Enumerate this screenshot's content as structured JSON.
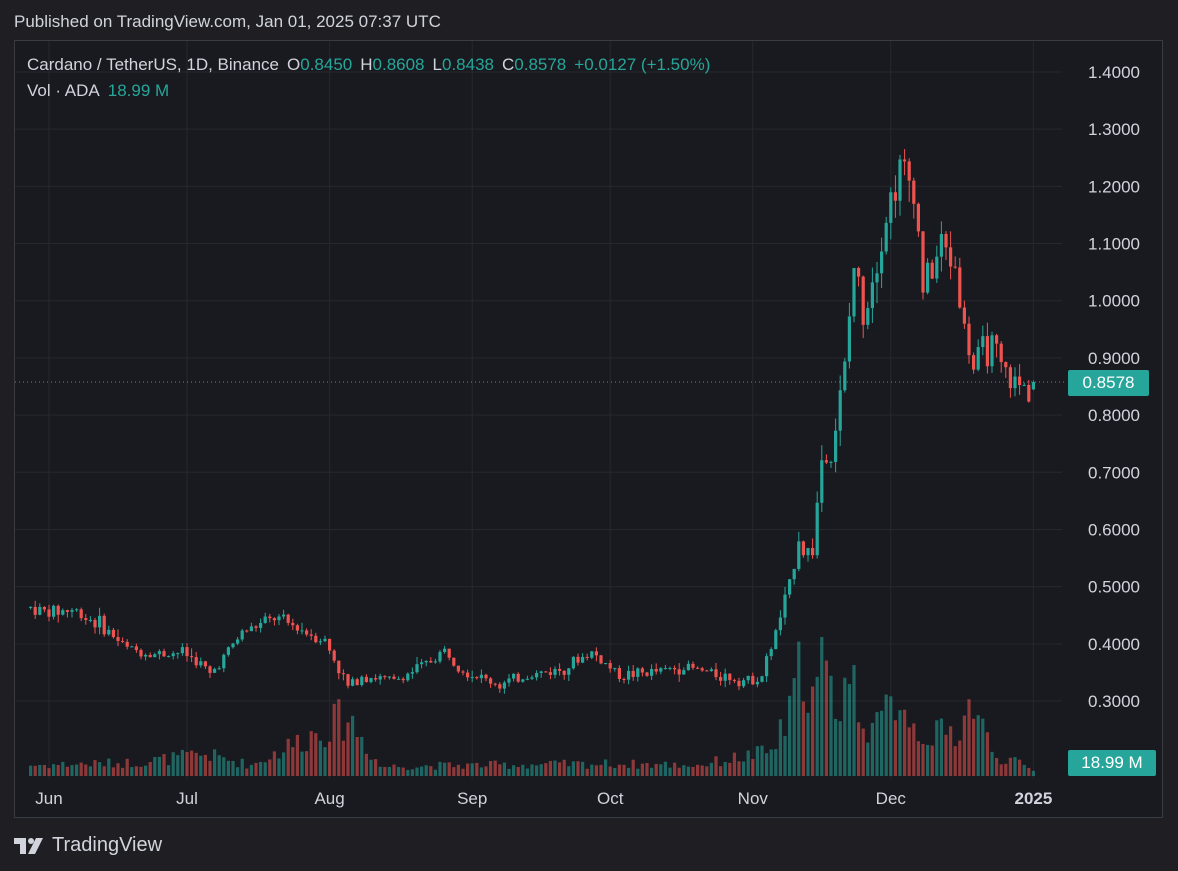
{
  "header": {
    "published": "Published on TradingView.com, Jan 01, 2025 07:37 UTC"
  },
  "legend": {
    "symbol": "Cardano / TetherUS, 1D, Binance",
    "o_label": "O",
    "o_value": "0.8450",
    "h_label": "H",
    "h_value": "0.8608",
    "l_label": "L",
    "l_value": "0.8438",
    "c_label": "C",
    "c_value": "0.8578",
    "change": "+0.0127 (+1.50%)",
    "vol_label": "Vol · ADA",
    "vol_value": "18.99 M"
  },
  "tags": {
    "last_price": "0.8578",
    "last_volume": "18.99 M"
  },
  "brand": {
    "name": "TradingView",
    "logo_icon": "tradingview-logo-icon"
  },
  "colors": {
    "up": "#26a69a",
    "down": "#ef5350",
    "background": "#181a1f",
    "grid": "#26282e"
  },
  "chart_data": {
    "type": "candlestick",
    "interval": "1D",
    "ylim": [
      0.2,
      1.45
    ],
    "y_ticks": [
      "1.4000",
      "1.3000",
      "1.2000",
      "1.1000",
      "1.0000",
      "0.9000",
      "0.8000",
      "0.7000",
      "0.6000",
      "0.5000",
      "0.4000",
      "0.3000"
    ],
    "x_ticks": [
      {
        "label": "Jun",
        "date": "2024-06-01"
      },
      {
        "label": "Jul",
        "date": "2024-07-01"
      },
      {
        "label": "Aug",
        "date": "2024-08-01"
      },
      {
        "label": "Sep",
        "date": "2024-09-01"
      },
      {
        "label": "Oct",
        "date": "2024-10-01"
      },
      {
        "label": "Nov",
        "date": "2024-11-01"
      },
      {
        "label": "Dec",
        "date": "2024-12-01"
      },
      {
        "label": "2025",
        "date": "2025-01-01",
        "bold": true
      }
    ],
    "last_price": 0.8578,
    "grid": true,
    "close_path": [
      [
        "2024-05-28",
        0.463
      ],
      [
        "2024-06-01",
        0.455
      ],
      [
        "2024-06-06",
        0.46
      ],
      [
        "2024-06-12",
        0.435
      ],
      [
        "2024-06-18",
        0.392
      ],
      [
        "2024-06-24",
        0.382
      ],
      [
        "2024-06-30",
        0.386
      ],
      [
        "2024-07-04",
        0.365
      ],
      [
        "2024-07-06",
        0.345
      ],
      [
        "2024-07-13",
        0.42
      ],
      [
        "2024-07-20",
        0.445
      ],
      [
        "2024-07-26",
        0.425
      ],
      [
        "2024-07-31",
        0.405
      ],
      [
        "2024-08-05",
        0.325
      ],
      [
        "2024-08-08",
        0.345
      ],
      [
        "2024-08-15",
        0.335
      ],
      [
        "2024-08-22",
        0.365
      ],
      [
        "2024-08-26",
        0.388
      ],
      [
        "2024-08-31",
        0.35
      ],
      [
        "2024-09-07",
        0.328
      ],
      [
        "2024-09-13",
        0.345
      ],
      [
        "2024-09-20",
        0.355
      ],
      [
        "2024-09-27",
        0.385
      ],
      [
        "2024-09-30",
        0.365
      ],
      [
        "2024-10-03",
        0.345
      ],
      [
        "2024-10-10",
        0.35
      ],
      [
        "2024-10-17",
        0.36
      ],
      [
        "2024-10-25",
        0.345
      ],
      [
        "2024-10-31",
        0.335
      ],
      [
        "2024-11-03",
        0.345
      ],
      [
        "2024-11-06",
        0.42
      ],
      [
        "2024-11-09",
        0.5
      ],
      [
        "2024-11-11",
        0.59
      ],
      [
        "2024-11-12",
        0.56
      ],
      [
        "2024-11-14",
        0.565
      ],
      [
        "2024-11-16",
        0.725
      ],
      [
        "2024-11-18",
        0.73
      ],
      [
        "2024-11-21",
        0.88
      ],
      [
        "2024-11-23",
        1.06
      ],
      [
        "2024-11-25",
        0.98
      ],
      [
        "2024-11-28",
        1.08
      ],
      [
        "2024-12-01",
        1.18
      ],
      [
        "2024-12-03",
        1.23
      ],
      [
        "2024-12-06",
        1.2
      ],
      [
        "2024-12-08",
        1.03
      ],
      [
        "2024-12-10",
        1.05
      ],
      [
        "2024-12-12",
        1.1
      ],
      [
        "2024-12-15",
        1.06
      ],
      [
        "2024-12-17",
        0.95
      ],
      [
        "2024-12-19",
        0.88
      ],
      [
        "2024-12-21",
        0.91
      ],
      [
        "2024-12-23",
        0.92
      ],
      [
        "2024-12-25",
        0.88
      ],
      [
        "2024-12-27",
        0.86
      ],
      [
        "2024-12-29",
        0.85
      ],
      [
        "2024-12-31",
        0.846
      ],
      [
        "2025-01-01",
        0.8578
      ]
    ],
    "volume_ylim": [
      0,
      700
    ],
    "volume_unit": "M ADA",
    "volume_path": [
      [
        "2024-05-28",
        40
      ],
      [
        "2024-06-10",
        45
      ],
      [
        "2024-06-20",
        50
      ],
      [
        "2024-07-05",
        80
      ],
      [
        "2024-07-15",
        40
      ],
      [
        "2024-08-05",
        220
      ],
      [
        "2024-08-12",
        35
      ],
      [
        "2024-09-01",
        40
      ],
      [
        "2024-10-01",
        45
      ],
      [
        "2024-10-20",
        40
      ],
      [
        "2024-11-05",
        90
      ],
      [
        "2024-11-09",
        220
      ],
      [
        "2024-11-12",
        450
      ],
      [
        "2024-11-14",
        280
      ],
      [
        "2024-11-16",
        400
      ],
      [
        "2024-11-19",
        260
      ],
      [
        "2024-11-22",
        380
      ],
      [
        "2024-11-25",
        220
      ],
      [
        "2024-11-28",
        170
      ],
      [
        "2024-12-03",
        320
      ],
      [
        "2024-12-06",
        180
      ],
      [
        "2024-12-10",
        150
      ],
      [
        "2024-12-15",
        160
      ],
      [
        "2024-12-19",
        280
      ],
      [
        "2024-12-23",
        80
      ],
      [
        "2024-12-27",
        60
      ],
      [
        "2025-01-01",
        18.99
      ]
    ]
  }
}
